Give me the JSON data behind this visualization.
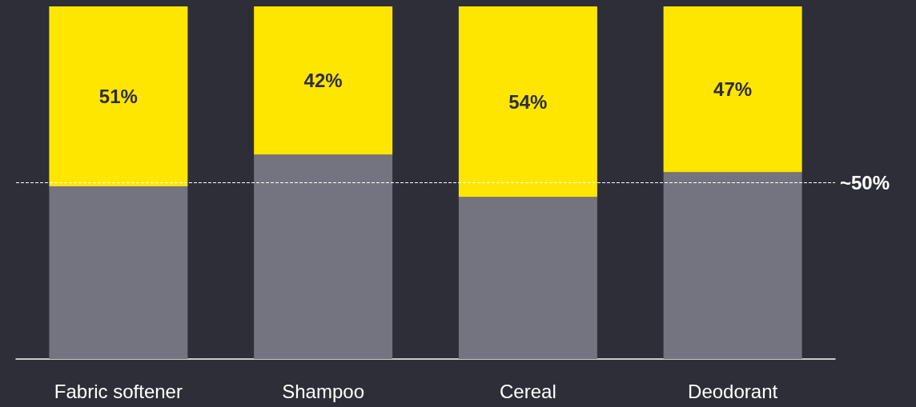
{
  "chart_data": {
    "type": "bar",
    "stacked": true,
    "categories": [
      "Fabric softener",
      "Shampoo",
      "Cereal",
      "Deodorant"
    ],
    "series": [
      {
        "color": "#747480",
        "values": [
          49,
          58,
          46,
          53
        ]
      },
      {
        "color": "#ffe600",
        "values": [
          51,
          42,
          54,
          47
        ],
        "value_labels": [
          "51%",
          "42%",
          "54%",
          "47%"
        ]
      }
    ],
    "ylim": [
      0,
      100
    ],
    "tick_labels": "x",
    "ref_lines": [
      {
        "axis": "y",
        "value": 50,
        "label": "~50%",
        "color": "#ffffff",
        "line_style": "dashed"
      }
    ]
  }
}
